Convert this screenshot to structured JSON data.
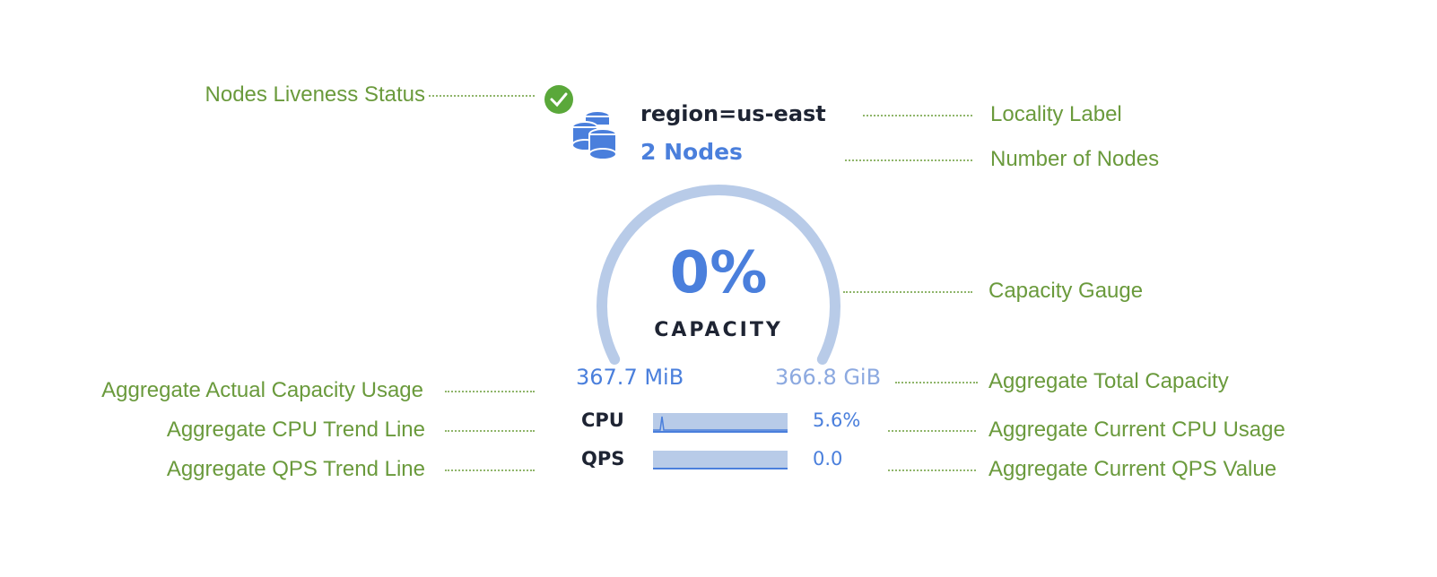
{
  "widget": {
    "liveness_status": "live",
    "locality": "region=us-east",
    "nodes": "2 Nodes",
    "capacity_percent": "0%",
    "capacity_label": "CAPACITY",
    "capacity_fraction": 0,
    "used": "367.7 MiB",
    "total": "366.8 GiB",
    "cpu_label": "CPU",
    "cpu_value": "5.6%",
    "qps_label": "QPS",
    "qps_value": "0.0",
    "colors": {
      "accent": "#4a7fdc",
      "gauge_track": "#b8cbe8",
      "live": "#5aa83a",
      "annotation": "#6a9a3c"
    }
  },
  "annotations": {
    "liveness": "Nodes Liveness Status",
    "locality": "Locality Label",
    "nodes": "Number of Nodes",
    "gauge": "Capacity Gauge",
    "used": "Aggregate Actual Capacity Usage",
    "total": "Aggregate Total Capacity",
    "cpu_trend": "Aggregate CPU Trend Line",
    "cpu_value": "Aggregate Current CPU Usage",
    "qps_trend": "Aggregate QPS Trend Line",
    "qps_value": "Aggregate Current QPS Value"
  }
}
